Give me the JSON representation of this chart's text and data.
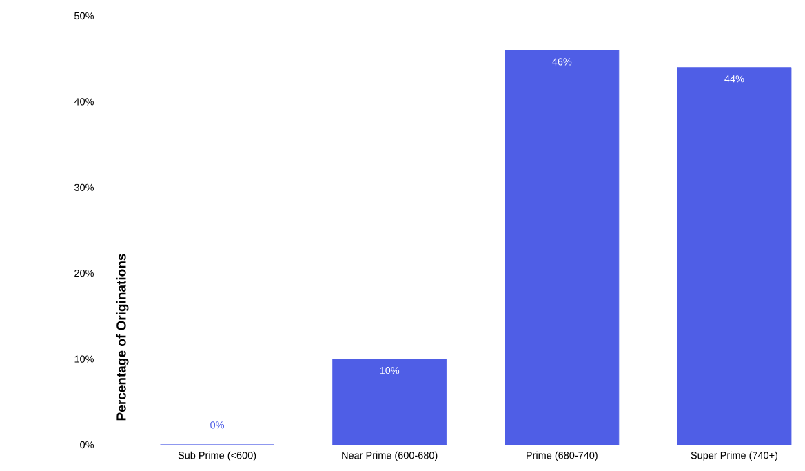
{
  "chart_data": {
    "type": "bar",
    "ylabel": "Percentage of Originations",
    "categories": [
      "Sub Prime (<600)",
      "Near Prime (600-680)",
      "Prime (680-740)",
      "Super Prime (740+)"
    ],
    "values": [
      0,
      10,
      46,
      44
    ],
    "value_labels": [
      "0%",
      "10%",
      "46%",
      "44%"
    ],
    "color": "#4f5ee6",
    "ylim": [
      0,
      50
    ],
    "yticks": [
      {
        "value": 0,
        "label": "0%"
      },
      {
        "value": 10,
        "label": "10%"
      },
      {
        "value": 20,
        "label": "20%"
      },
      {
        "value": 30,
        "label": "30%"
      },
      {
        "value": 40,
        "label": "40%"
      },
      {
        "value": 50,
        "label": "50%"
      }
    ],
    "grid": false
  }
}
